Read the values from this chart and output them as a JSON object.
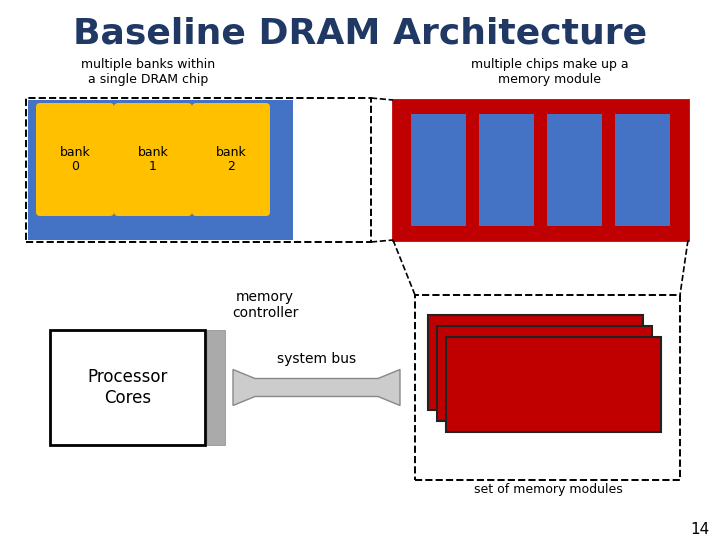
{
  "title": "Baseline DRAM Architecture",
  "title_color": "#1F3864",
  "title_fontsize": 26,
  "bg_color": "#ffffff",
  "label_multiple_banks": "multiple banks within\na single DRAM chip",
  "label_multiple_chips": "multiple chips make up a\nmemory module",
  "label_memory_controller": "memory\ncontroller",
  "label_processor": "Processor\nCores",
  "label_system_bus": "system bus",
  "label_set_of_memory": "set of memory modules",
  "label_page_num": "14",
  "chip_bg_color": "#4472C4",
  "bank_color": "#FFC000",
  "bank_labels": [
    "bank\n0",
    "bank\n1",
    "bank\n2"
  ],
  "module_red_color": "#C00000",
  "module_blue_color": "#4472C4",
  "processor_box_color": "#000000",
  "controller_color": "#AAAAAA",
  "arrow_fill_color": "#CCCCCC",
  "arrow_edge_color": "#888888",
  "text_fontsize": 9,
  "bank_fontsize": 9,
  "proc_fontsize": 12
}
